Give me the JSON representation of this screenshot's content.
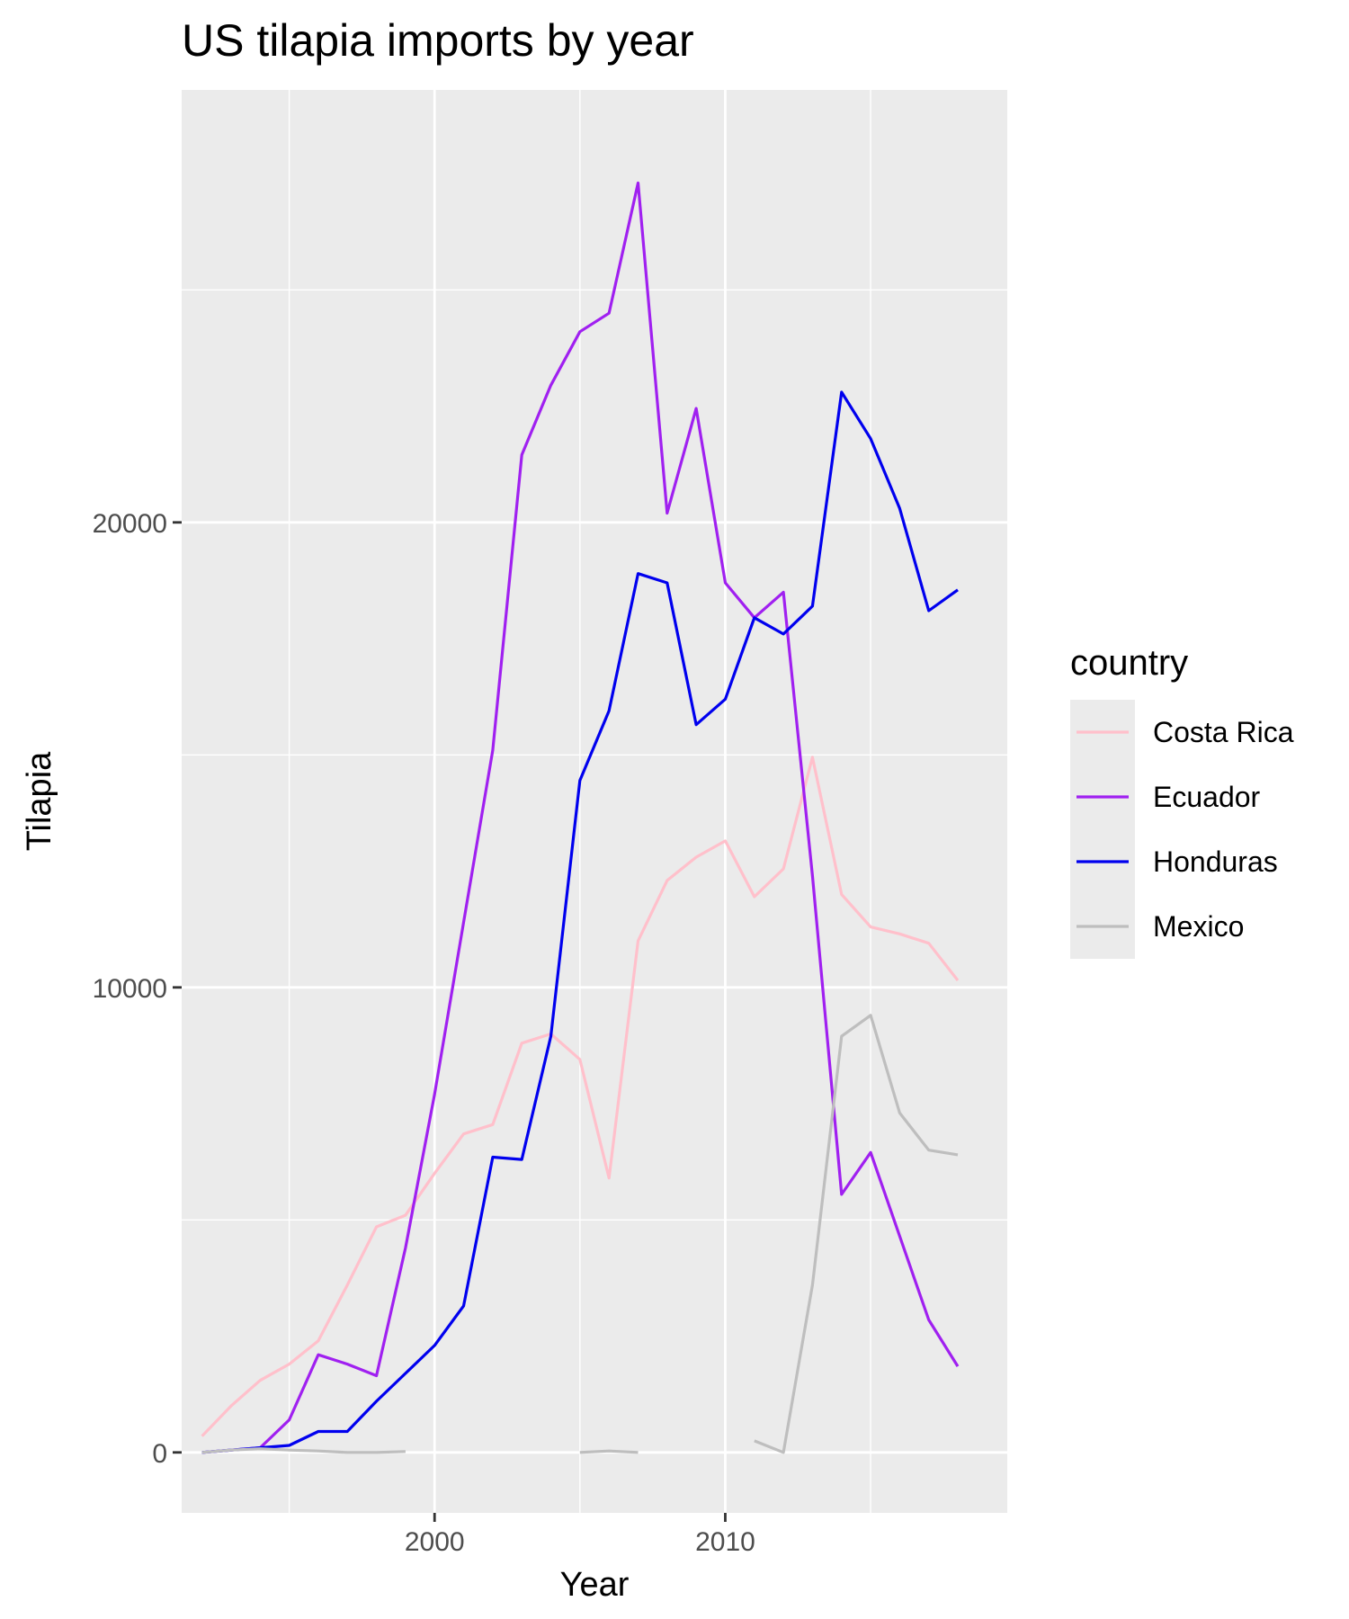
{
  "chart_data": {
    "type": "line",
    "title": "US tilapia imports by year",
    "xlabel": "Year",
    "ylabel": "Tilapia",
    "xlim": [
      1991.3,
      2019.7
    ],
    "ylim": [
      -1300,
      29300
    ],
    "x_ticks": [
      2000,
      2010
    ],
    "x_minor": [
      1995,
      2005,
      2015
    ],
    "y_ticks": [
      0,
      10000,
      20000
    ],
    "y_minor": [
      5000,
      15000,
      25000
    ],
    "grid": true,
    "legend_title": "country",
    "legend_position": "right",
    "series": [
      {
        "name": "Costa Rica",
        "color": "#FFC0CB",
        "points": [
          [
            1992,
            350
          ],
          [
            1993,
            1000
          ],
          [
            1994,
            1550
          ],
          [
            1995,
            1900
          ],
          [
            1996,
            2400
          ],
          [
            1997,
            3600
          ],
          [
            1998,
            4850
          ],
          [
            1999,
            5100
          ],
          [
            2000,
            6000
          ],
          [
            2001,
            6850
          ],
          [
            2002,
            7050
          ],
          [
            2003,
            8800
          ],
          [
            2004,
            9000
          ],
          [
            2005,
            8450
          ],
          [
            2006,
            5900
          ],
          [
            2007,
            11000
          ],
          [
            2008,
            12300
          ],
          [
            2009,
            12800
          ],
          [
            2010,
            13150
          ],
          [
            2011,
            11950
          ],
          [
            2012,
            12550
          ],
          [
            2013,
            14950
          ],
          [
            2014,
            12000
          ],
          [
            2015,
            11300
          ],
          [
            2016,
            11150
          ],
          [
            2017,
            10950
          ],
          [
            2018,
            10150
          ]
        ]
      },
      {
        "name": "Ecuador",
        "color": "#A020F0",
        "points": [
          [
            1992,
            0
          ],
          [
            1993,
            50
          ],
          [
            1994,
            100
          ],
          [
            1995,
            700
          ],
          [
            1996,
            2100
          ],
          [
            1997,
            1900
          ],
          [
            1998,
            1650
          ],
          [
            1999,
            4400
          ],
          [
            2000,
            7700
          ],
          [
            2001,
            11400
          ],
          [
            2002,
            15100
          ],
          [
            2003,
            21450
          ],
          [
            2004,
            22950
          ],
          [
            2005,
            24100
          ],
          [
            2006,
            24500
          ],
          [
            2007,
            27300
          ],
          [
            2008,
            20200
          ],
          [
            2009,
            22450
          ],
          [
            2010,
            18700
          ],
          [
            2011,
            17950
          ],
          [
            2012,
            18500
          ],
          [
            2013,
            12400
          ],
          [
            2014,
            5550
          ],
          [
            2015,
            6450
          ],
          [
            2016,
            4650
          ],
          [
            2017,
            2850
          ],
          [
            2018,
            1850
          ]
        ]
      },
      {
        "name": "Honduras",
        "color": "#0000EE",
        "points": [
          [
            1992,
            0
          ],
          [
            1993,
            50
          ],
          [
            1994,
            100
          ],
          [
            1995,
            150
          ],
          [
            1996,
            450
          ],
          [
            1997,
            450
          ],
          [
            1998,
            1100
          ],
          [
            1999,
            1700
          ],
          [
            2000,
            2300
          ],
          [
            2001,
            3150
          ],
          [
            2002,
            6350
          ],
          [
            2003,
            6300
          ],
          [
            2004,
            8950
          ],
          [
            2005,
            14450
          ],
          [
            2006,
            15950
          ],
          [
            2007,
            18900
          ],
          [
            2008,
            18700
          ],
          [
            2009,
            15650
          ],
          [
            2010,
            16200
          ],
          [
            2011,
            17950
          ],
          [
            2012,
            17600
          ],
          [
            2013,
            18200
          ],
          [
            2014,
            22800
          ],
          [
            2015,
            21800
          ],
          [
            2016,
            20300
          ],
          [
            2017,
            18100
          ],
          [
            2018,
            18550
          ]
        ]
      },
      {
        "name": "Mexico",
        "color": "#BEBEBE",
        "segments": [
          [
            [
              1992,
              0
            ],
            [
              1993,
              50
            ],
            [
              1994,
              80
            ],
            [
              1995,
              50
            ],
            [
              1996,
              30
            ],
            [
              1997,
              0
            ],
            [
              1998,
              0
            ],
            [
              1999,
              20
            ]
          ],
          [
            [
              2005,
              0
            ],
            [
              2006,
              30
            ],
            [
              2007,
              0
            ]
          ],
          [
            [
              2011,
              250
            ],
            [
              2012,
              0
            ],
            [
              2013,
              3600
            ],
            [
              2014,
              8950
            ],
            [
              2015,
              9400
            ],
            [
              2016,
              7300
            ],
            [
              2017,
              6500
            ],
            [
              2018,
              6400
            ]
          ]
        ]
      }
    ]
  }
}
